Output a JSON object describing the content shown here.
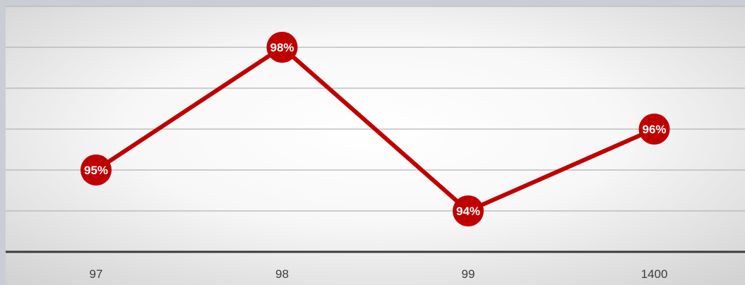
{
  "chart_data": {
    "type": "line",
    "categories": [
      "97",
      "98",
      "99",
      "1400"
    ],
    "series": [
      {
        "values": [
          95,
          98,
          94,
          96
        ],
        "data_labels": [
          "95%",
          "98%",
          "94%",
          "96%"
        ],
        "color": "#c00000"
      }
    ],
    "ylim": [
      93,
      99
    ],
    "gridlines": true,
    "legend": "none",
    "title": "",
    "xlabel": "",
    "ylabel": ""
  },
  "colors": {
    "frame": "#c9ced5",
    "plot_background_center": "#ffffff",
    "plot_background_edge": "#d0d0d0",
    "series": "#c00000",
    "axis_line": "#3a3a3a",
    "gridline": "#b3b3b3"
  }
}
